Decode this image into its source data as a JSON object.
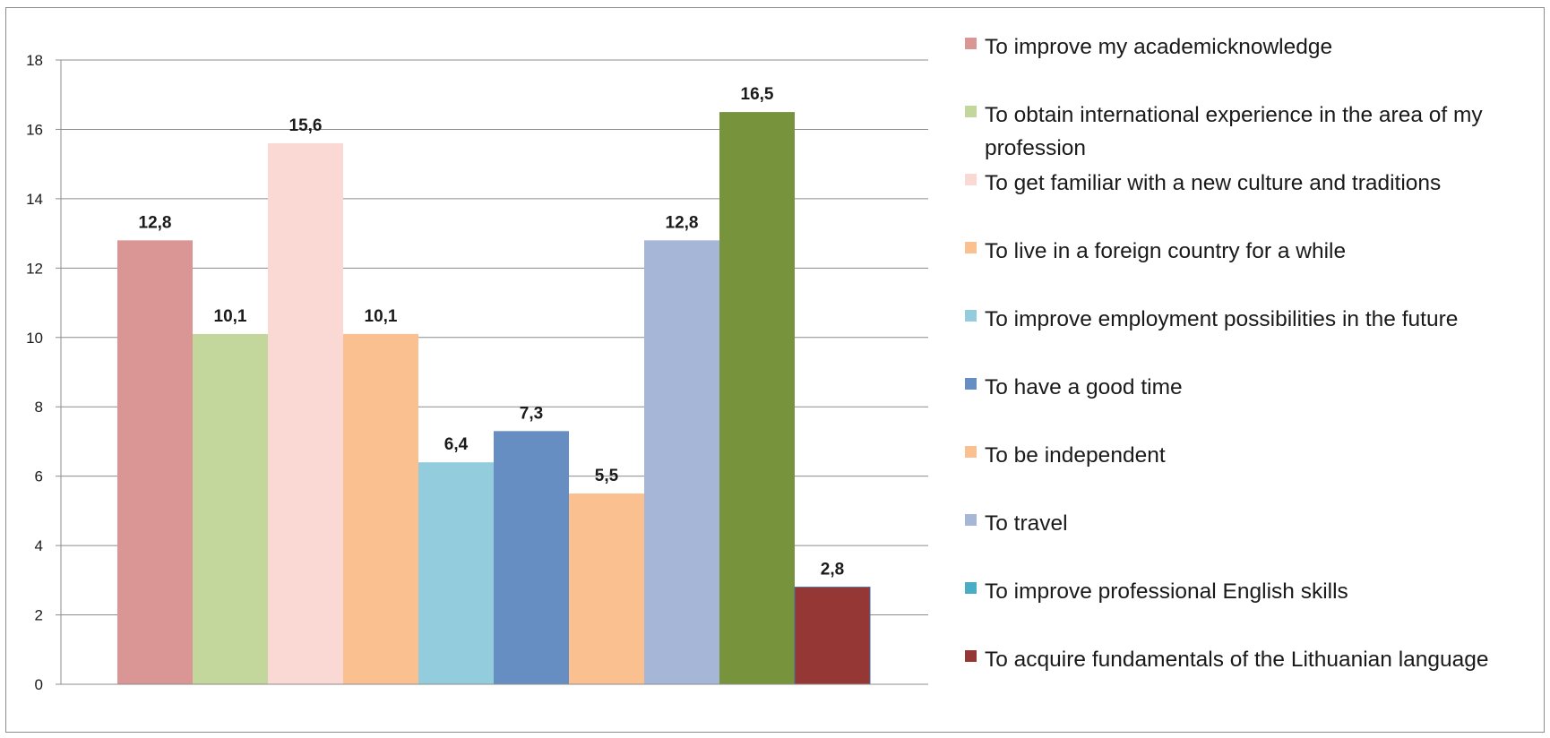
{
  "chart_data": {
    "type": "bar",
    "title": "",
    "xlabel": "",
    "ylabel": "",
    "ylim": [
      0,
      18
    ],
    "yticks": [
      0,
      2,
      4,
      6,
      8,
      10,
      12,
      14,
      16,
      18
    ],
    "ytick_labels": [
      "0",
      "2",
      "4",
      "6",
      "8",
      "10",
      "12",
      "14",
      "16",
      "18"
    ],
    "grid": true,
    "legend_position": "right",
    "series": [
      {
        "name": "To improve my academicknowledge",
        "value": 12.8,
        "label": "12,8",
        "color": "#d99694"
      },
      {
        "name": "To obtain international experience in the area of my profession",
        "value": 10.1,
        "label": "10,1",
        "color": "#c3d69b"
      },
      {
        "name": "To get familiar with a new culture and traditions",
        "value": 15.6,
        "label": "15,6",
        "color": "#fad9d5"
      },
      {
        "name": "To live in a foreign country for a while",
        "value": 10.1,
        "label": "10,1",
        "color": "#fac090"
      },
      {
        "name": "To improve employment possibilities in the future",
        "value": 6.4,
        "label": "6,4",
        "color": "#93cddd"
      },
      {
        "name": "To have a good time",
        "value": 7.3,
        "label": "7,3",
        "color": "#668ec3"
      },
      {
        "name": "To be independent",
        "value": 5.5,
        "label": "5,5",
        "color": "#fac090"
      },
      {
        "name": "To travel",
        "value": 12.8,
        "label": "12,8",
        "color": "#a5b6d6"
      },
      {
        "name": "To improve professional English skills",
        "value": 16.5,
        "label": "16,5",
        "color": "#77933c"
      },
      {
        "name": "To acquire fundamentals of the Lithuanian language",
        "value": 2.8,
        "label": "2,8",
        "color": "#953735"
      }
    ],
    "legend_entries": [
      {
        "label": "To improve my academicknowledge",
        "color": "#d99694"
      },
      {
        "label": "To obtain international experience in the area of my profession",
        "color": "#c3d69b"
      },
      {
        "label": "To get familiar with a new culture and traditions",
        "color": "#fad9d5"
      },
      {
        "label": "To live in a foreign country for a while",
        "color": "#fac090"
      },
      {
        "label": "To improve employment possibilities in the future",
        "color": "#93cddd"
      },
      {
        "label": "To have a good time",
        "color": "#668ec3"
      },
      {
        "label": "To be independent",
        "color": "#fac090"
      },
      {
        "label": "To travel",
        "color": "#a5b6d6"
      },
      {
        "label": "To improve professional English skills",
        "color": "#4bacc6"
      },
      {
        "label": "To acquire fundamentals of the Lithuanian language",
        "color": "#953735"
      }
    ]
  }
}
